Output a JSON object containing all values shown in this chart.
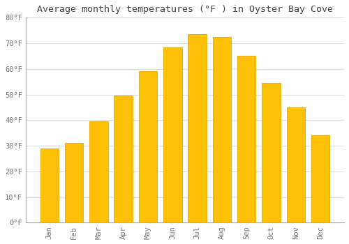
{
  "months": [
    "Jan",
    "Feb",
    "Mar",
    "Apr",
    "May",
    "Jun",
    "Jul",
    "Aug",
    "Sep",
    "Oct",
    "Nov",
    "Dec"
  ],
  "values": [
    29,
    31,
    39.5,
    49.5,
    59,
    68.5,
    73.5,
    72.5,
    65,
    54.5,
    45,
    34
  ],
  "bar_color": "#FFC107",
  "bar_edge_color": "#E8A800",
  "background_color": "#FFFFFF",
  "grid_color": "#DDDDDD",
  "title": "Average monthly temperatures (°F ) in Oyster Bay Cove",
  "title_fontsize": 9.5,
  "title_color": "#444444",
  "tick_label_color": "#777777",
  "ylim": [
    0,
    80
  ],
  "yticks": [
    0,
    10,
    20,
    30,
    40,
    50,
    60,
    70,
    80
  ]
}
